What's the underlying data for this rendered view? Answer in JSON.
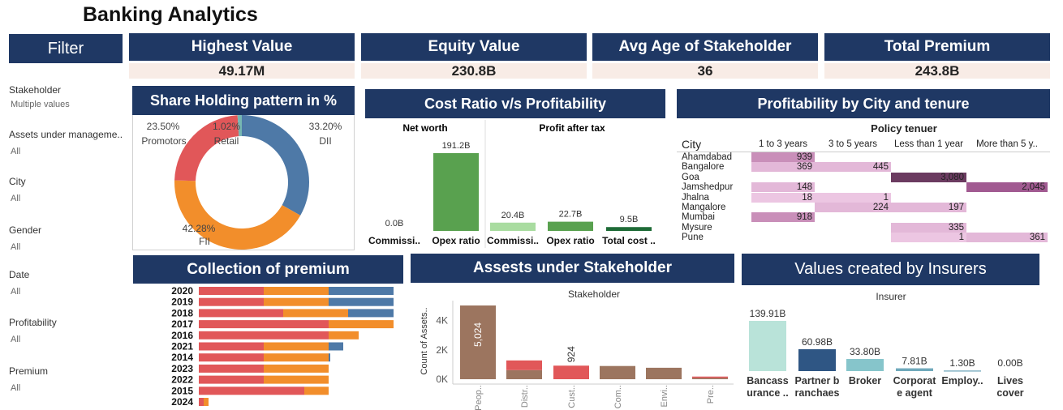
{
  "title": "Banking Analytics",
  "filter": {
    "button_label": "Filter",
    "items": [
      {
        "label": "Stakeholder",
        "value": "Multiple values"
      },
      {
        "label": "Assets under manageme..",
        "value": "All"
      },
      {
        "label": "City",
        "value": "All"
      },
      {
        "label": "Gender",
        "value": "All"
      },
      {
        "label": "Date",
        "value": "All"
      },
      {
        "label": "Profitability",
        "value": "All"
      },
      {
        "label": "Premium",
        "value": "All"
      }
    ]
  },
  "kpis": [
    {
      "label": "Highest Value",
      "value": "49.17M"
    },
    {
      "label": "Equity Value",
      "value": "230.8B"
    },
    {
      "label": "Avg Age of Stakeholder",
      "value": "36"
    },
    {
      "label": "Total Premium",
      "value": "243.8B"
    }
  ],
  "share_holding": {
    "title": "Share Holding pattern in %",
    "chart_data": {
      "type": "pie",
      "slices": [
        {
          "label": "DII",
          "pct_label": "33.20%",
          "value": 33.2,
          "color": "#4e79a7"
        },
        {
          "label": "FII",
          "pct_label": "42.28%",
          "value": 42.28,
          "color": "#f28e2b"
        },
        {
          "label": "Promotors",
          "pct_label": "23.50%",
          "value": 23.5,
          "color": "#e15759"
        },
        {
          "label": "Retail",
          "pct_label": "1.02%",
          "value": 1.02,
          "color": "#76b7b2"
        }
      ]
    }
  },
  "cost_ratio": {
    "title": "Cost Ratio v/s Profitability",
    "groups": [
      {
        "name": "Net worth",
        "bars": [
          {
            "label": "Commissi..",
            "value": 0.0,
            "value_label": "0.0B",
            "color": "#59a14f"
          },
          {
            "label": "Opex ratio",
            "value": 191.2,
            "value_label": "191.2B",
            "color": "#59a14f"
          }
        ]
      },
      {
        "name": "Profit after tax",
        "bars": [
          {
            "label": "Commissi..",
            "value": 20.4,
            "value_label": "20.4B",
            "color": "#a9dca0"
          },
          {
            "label": "Opex ratio",
            "value": 22.7,
            "value_label": "22.7B",
            "color": "#59a14f"
          },
          {
            "label": "Total cost ..",
            "value": 9.5,
            "value_label": "9.5B",
            "color": "#1e6b37"
          }
        ]
      }
    ]
  },
  "profitability": {
    "title": "Profitability by City and tenure",
    "column_header": "Policy tenuer",
    "row_header": "City",
    "columns": [
      "1 to 3 years",
      "3 to 5 years",
      "Less than 1 year",
      "More than 5 y.."
    ],
    "rows": [
      {
        "city": "Ahamdabad",
        "values": [
          939,
          null,
          null,
          null
        ]
      },
      {
        "city": "Bangalore",
        "values": [
          369,
          445,
          null,
          null
        ]
      },
      {
        "city": "Goa",
        "values": [
          null,
          null,
          3080,
          null
        ]
      },
      {
        "city": "Jamshedpur",
        "values": [
          148,
          null,
          null,
          2045
        ]
      },
      {
        "city": "Jhalna",
        "values": [
          18,
          1,
          null,
          null
        ]
      },
      {
        "city": "Mangalore",
        "values": [
          null,
          224,
          197,
          null
        ]
      },
      {
        "city": "Mumbai",
        "values": [
          918,
          null,
          null,
          null
        ]
      },
      {
        "city": "Mysure",
        "values": [
          null,
          null,
          335,
          null
        ]
      },
      {
        "city": "Pune",
        "values": [
          null,
          null,
          1,
          361
        ]
      }
    ],
    "value_labels": {
      "3080": "3,080",
      "2045": "2,045"
    }
  },
  "collection": {
    "title": "Collection of premium",
    "chart_data": {
      "type": "bar",
      "orientation": "horizontal-stacked",
      "categories": [
        "2020",
        "2019",
        "2018",
        "2017",
        "2016",
        "2021",
        "2014",
        "2023",
        "2022",
        "2015",
        "2024"
      ],
      "series": [
        {
          "color": "#e15759",
          "values": [
            80,
            80,
            104,
            160,
            160,
            80,
            80,
            80,
            80,
            130,
            6
          ]
        },
        {
          "color": "#f28e2b",
          "values": [
            80,
            80,
            80,
            80,
            37,
            80,
            80,
            80,
            80,
            30,
            6
          ]
        },
        {
          "color": "#4e79a7",
          "values": [
            80,
            80,
            56,
            0,
            0,
            18,
            2,
            0,
            0,
            0,
            0
          ]
        }
      ]
    }
  },
  "assets": {
    "title": "Assests under Stakeholder",
    "header": "Stakeholder",
    "ylabel": "Count of Assets..",
    "yticks": [
      "4K",
      "2K",
      "0K"
    ],
    "chart_data": {
      "type": "bar",
      "categories": [
        "Peop..",
        "Distr..",
        "Cust..",
        "Com..",
        "Envi..",
        "Pre.."
      ],
      "value_labels": {
        "Peop..": "5,024",
        "Cust..": "924"
      },
      "stacks": [
        [
          {
            "value": 5024,
            "color": "#9c755f"
          }
        ],
        [
          {
            "value": 620,
            "color": "#9c755f"
          },
          {
            "value": 660,
            "color": "#e15759"
          }
        ],
        [
          {
            "value": 924,
            "color": "#e15759"
          }
        ],
        [
          {
            "value": 900,
            "color": "#9c755f"
          }
        ],
        [
          {
            "value": 780,
            "color": "#9c755f"
          }
        ],
        [
          {
            "value": 90,
            "color": "#9c755f"
          },
          {
            "value": 90,
            "color": "#e15759"
          }
        ]
      ],
      "ymax": 5200
    }
  },
  "insurers": {
    "title": "Values created by Insurers",
    "header": "Insurer",
    "chart_data": {
      "type": "bar",
      "categories": [
        {
          "line1": "Bancass",
          "line2": "urance .."
        },
        {
          "line1": "Partner b",
          "line2": "ranchaes"
        },
        {
          "line1": "Broker",
          "line2": ""
        },
        {
          "line1": "Corporat",
          "line2": "e agent"
        },
        {
          "line1": "Employ..",
          "line2": ""
        },
        {
          "line1": "Lives",
          "line2": "cover"
        }
      ],
      "values": [
        139.91,
        60.98,
        33.8,
        7.81,
        1.3,
        0.0
      ],
      "value_labels": [
        "139.91B",
        "60.98B",
        "33.80B",
        "7.81B",
        "1.30B",
        "0.00B"
      ],
      "colors": [
        "#b9e3d9",
        "#2f5684",
        "#86c5cb",
        "#6fa9bb",
        "#4b8fa8",
        "#3a7a99"
      ]
    }
  }
}
